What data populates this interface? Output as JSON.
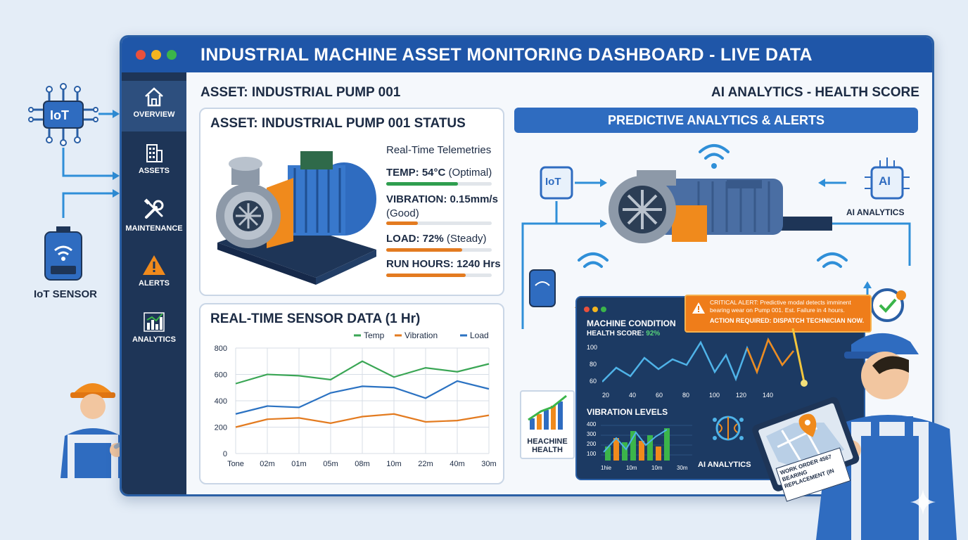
{
  "outer": {
    "iot_chip_label": "IoT",
    "iot_sensor_label": "IoT SENSOR"
  },
  "window": {
    "title": "INDUSTRIAL MACHINE ASSET MONITORING DASHBOARD - LIVE DATA"
  },
  "sidebar": {
    "items": [
      {
        "label": "OVERVIEW",
        "icon": "home-icon"
      },
      {
        "label": "ASSETS",
        "icon": "building-icon"
      },
      {
        "label": "MAINTENANCE",
        "icon": "wrench-icon"
      },
      {
        "label": "ALERTS",
        "icon": "warning-icon"
      },
      {
        "label": "ANALYTICS",
        "icon": "bar-chart-icon"
      }
    ]
  },
  "main": {
    "asset_heading": "ASSET: INDUSTRIAL PUMP 001",
    "ai_heading": "AI ANALYTICS - HEALTH SCORE"
  },
  "status_card": {
    "title": "ASSET: INDUSTRIAL PUMP 001 STATUS",
    "telemetry_heading": "Real-Time Telemetries",
    "temp_label": "TEMP: 54°C",
    "temp_note": "(Optimal)",
    "temp_level": 0.68,
    "vibration_label": "VIBRATION: 0.15mm/s",
    "vibration_note": "(Good)",
    "vibration_level": 0.3,
    "load_label": "LOAD: 72%",
    "load_note": "(Steady)",
    "load_level": 0.72,
    "runhours_label": "RUN HOURS: 1240 Hrs",
    "runhours_level": 0.75,
    "colors": {
      "temp": "#2f9e4f",
      "vibration": "#e37b20",
      "load": "#e37b20",
      "runhours": "#e37b20"
    }
  },
  "sensor_card": {
    "title": "REAL-TIME SENSOR DATA (1 Hr)"
  },
  "chart_data": {
    "type": "line",
    "title": "REAL-TIME SENSOR DATA (1 Hr)",
    "categories": [
      "Tone",
      "02m",
      "01m",
      "05m",
      "08m",
      "10m",
      "22m",
      "40m",
      "30m"
    ],
    "yticks": [
      0,
      200,
      400,
      600,
      800
    ],
    "ylim": [
      0,
      800
    ],
    "grid": true,
    "legend_position": "top-right",
    "series": [
      {
        "name": "Temp",
        "color": "#3aa655",
        "values": [
          530,
          600,
          590,
          560,
          700,
          580,
          650,
          620,
          680
        ]
      },
      {
        "name": "Vibration",
        "color": "#e37b20",
        "values": [
          200,
          260,
          270,
          230,
          280,
          300,
          240,
          250,
          290
        ]
      },
      {
        "name": "Load",
        "color": "#2b72c2",
        "values": [
          300,
          360,
          350,
          460,
          510,
          500,
          420,
          550,
          490
        ]
      }
    ]
  },
  "analytics": {
    "pill_label": "PREDICTIVE ANALYTICS & ALERTS",
    "iot_badge": "IoT",
    "ai_badge": "AI",
    "ai_caption": "AI ANALYTICS",
    "machine_health_caption_1": "HEACHINE",
    "machine_health_caption_2": "HEALTH",
    "ai_analytics_caption": "AI ANALYTICS"
  },
  "condition_panel": {
    "title": "MACHINE CONDITION",
    "health_prefix": "HEALTH SCORE: ",
    "health_value": "92%",
    "yticks": [
      "100",
      "80",
      "60"
    ],
    "xticks": [
      "20",
      "40",
      "60",
      "80",
      "100",
      "120",
      "140"
    ],
    "vibration_title": "VIBRATION LEVELS",
    "vib_yticks": [
      "400",
      "300",
      "200",
      "100"
    ],
    "vib_xticks": [
      "1hie",
      "10m",
      "10m",
      "30m"
    ]
  },
  "alert": {
    "line1": "CRITICAL ALERT: Predictive modal detects imminent",
    "line2": "bearing wear on Pump 001. Est. Failure in 4 hours.",
    "line3": "ACTION REQUIRED: DISPATCH TECHNICIAN NOW."
  },
  "tablet": {
    "work_order_1": "WORK ORDER 4567",
    "work_order_2": "BEARING",
    "work_order_3": "REPLACEMENT (IN"
  }
}
